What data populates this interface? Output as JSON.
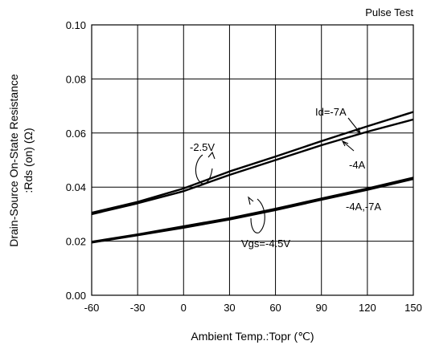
{
  "chart_data": {
    "type": "line",
    "subtitle": "Pulse Test",
    "xlabel": "Ambient Temp.:Topr (℃)",
    "ylabel_line1": "Drain-Source On-State Resistance",
    "ylabel_line2": ":Rds (on) (Ω)",
    "xlim": [
      -60,
      150
    ],
    "ylim": [
      0,
      0.1
    ],
    "x_ticks": [
      "-60",
      "-30",
      "0",
      "30",
      "60",
      "90",
      "120",
      "150"
    ],
    "y_ticks": [
      "0.00",
      "0.02",
      "0.04",
      "0.06",
      "0.08",
      "0.10"
    ],
    "grid": true,
    "series": [
      {
        "x": [
          -60,
          -30,
          0,
          30,
          60,
          90,
          120,
          150
        ],
        "values": [
          0.0305,
          0.0345,
          0.0395,
          0.0458,
          0.0513,
          0.057,
          0.0625,
          0.0678
        ]
      },
      {
        "x": [
          -60,
          -30,
          0,
          30,
          60,
          90,
          120,
          150
        ],
        "values": [
          0.03,
          0.034,
          0.0385,
          0.0445,
          0.05,
          0.0555,
          0.0605,
          0.065
        ]
      },
      {
        "x": [
          -60,
          -30,
          0,
          30,
          60,
          90,
          120,
          150
        ],
        "values": [
          0.0198,
          0.0225,
          0.0255,
          0.0285,
          0.032,
          0.0358,
          0.0395,
          0.0435
        ]
      },
      {
        "x": [
          -60,
          -30,
          0,
          30,
          60,
          90,
          120,
          150
        ],
        "values": [
          0.0195,
          0.0222,
          0.025,
          0.028,
          0.0315,
          0.0353,
          0.039,
          0.043
        ]
      }
    ],
    "annotations": {
      "id_7a": "Id=-7A",
      "id_4a": "-4A",
      "vgs_25": "-2.5V",
      "id_4a7a": "-4A,-7A",
      "vgs_45": "Vgs=-4.5V"
    }
  }
}
